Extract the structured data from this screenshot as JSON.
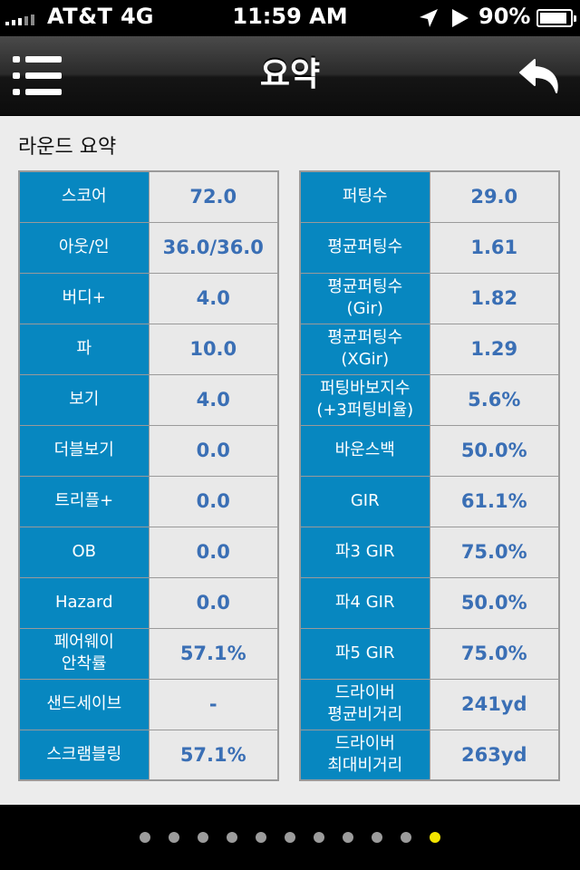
{
  "status_bar": {
    "carrier": "AT&T",
    "network": "4G",
    "time": "11:59 AM",
    "battery_percent": "90%",
    "battery_level": 0.9
  },
  "navbar": {
    "title": "요약",
    "menu_icon": "list-menu-icon",
    "back_icon": "back-arrow-icon"
  },
  "section": {
    "title": "라운드 요약"
  },
  "left_table": [
    {
      "label": "스코어",
      "value": "72.0"
    },
    {
      "label": "아웃/인",
      "value": "36.0/36.0"
    },
    {
      "label": "버디+",
      "value": "4.0"
    },
    {
      "label": "파",
      "value": "10.0"
    },
    {
      "label": "보기",
      "value": "4.0"
    },
    {
      "label": "더블보기",
      "value": "0.0"
    },
    {
      "label": "트리플+",
      "value": "0.0"
    },
    {
      "label": "OB",
      "value": "0.0"
    },
    {
      "label": "Hazard",
      "value": "0.0"
    },
    {
      "label": "페어웨이\n안착률",
      "value": "57.1%"
    },
    {
      "label": "샌드세이브",
      "value": "-"
    },
    {
      "label": "스크램블링",
      "value": "57.1%"
    }
  ],
  "right_table": [
    {
      "label": "퍼팅수",
      "value": "29.0"
    },
    {
      "label": "평균퍼팅수",
      "value": "1.61"
    },
    {
      "label": "평균퍼팅수\n(Gir)",
      "value": "1.82"
    },
    {
      "label": "평균퍼팅수\n(XGir)",
      "value": "1.29"
    },
    {
      "label": "퍼팅바보지수\n(+3퍼팅비율)",
      "value": "5.6%"
    },
    {
      "label": "바운스백",
      "value": "50.0%"
    },
    {
      "label": "GIR",
      "value": "61.1%"
    },
    {
      "label": "파3 GIR",
      "value": "75.0%"
    },
    {
      "label": "파4 GIR",
      "value": "50.0%"
    },
    {
      "label": "파5 GIR",
      "value": "75.0%"
    },
    {
      "label": "드라이버\n평균비거리",
      "value": "241yd"
    },
    {
      "label": "드라이버\n최대비거리",
      "value": "263yd"
    }
  ],
  "pager": {
    "total": 11,
    "active_index": 10,
    "colors": {
      "inactive": "#9c9c9c",
      "active": "#f3e400"
    }
  },
  "colors": {
    "label_bg": "#0787c0",
    "value_text": "#3a6fb5",
    "content_bg": "#ececec"
  }
}
